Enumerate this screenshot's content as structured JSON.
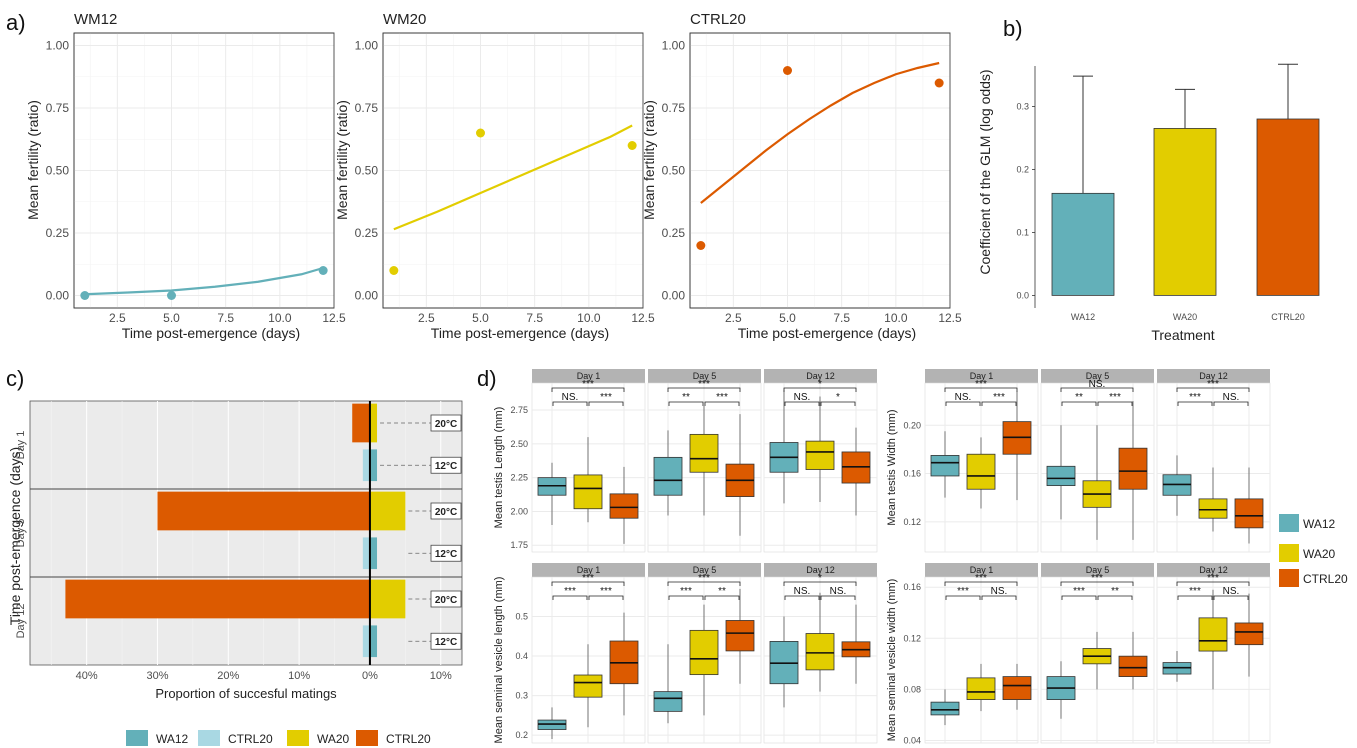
{
  "colors": {
    "wa12": "#63b0b9",
    "ctrl20_light": "#a9d8e3",
    "wa20": "#e2cd00",
    "ctrl20": "#dc5a00",
    "strip": "#b3b3b3",
    "panel_bg": "#ebebeb"
  },
  "panel_a": {
    "letter": "a)",
    "ylabel": "Mean fertility (ratio)",
    "xlabel": "Time post-emergence (days)",
    "xticks": [
      "2.5",
      "5.0",
      "7.5",
      "10.0",
      "12.5"
    ],
    "yticks": [
      "0.00",
      "0.25",
      "0.50",
      "0.75",
      "1.00"
    ]
  },
  "panel_b": {
    "letter": "b)",
    "ylabel": "Coefficient of the GLM (log odds)",
    "xlabel": "Treatment",
    "yticks": [
      "0.0",
      "0.1",
      "0.2",
      "0.3"
    ]
  },
  "panel_c": {
    "letter": "c)",
    "ylabel": "Time post-emergence (days)",
    "xlabel": "Proportion of succesful matings",
    "xticks": [
      "40%",
      "30%",
      "20%",
      "10%",
      "0%",
      "10%"
    ],
    "temp_20": "20°C",
    "temp_12": "12°C"
  },
  "panel_d": {
    "letter": "d)"
  },
  "legend_c": [
    {
      "label": "WA12",
      "color": "#63b0b9"
    },
    {
      "label": "CTRL20",
      "color": "#a9d8e3"
    },
    {
      "label": "WA20",
      "color": "#e2cd00"
    },
    {
      "label": "CTRL20",
      "color": "#dc5a00"
    }
  ],
  "legend_d": [
    {
      "label": "WA12",
      "color": "#63b0b9"
    },
    {
      "label": "WA20",
      "color": "#e2cd00"
    },
    {
      "label": "CTRL20",
      "color": "#dc5a00"
    }
  ],
  "chart_data": [
    {
      "type": "scatter",
      "panel": "a",
      "title": "WM12",
      "xlabel": "Time post-emergence (days)",
      "ylabel": "Mean fertility (ratio)",
      "xlim": [
        0.5,
        12.5
      ],
      "ylim": [
        0,
        1
      ],
      "color": "#63b0b9",
      "points": {
        "x": [
          1,
          5,
          12
        ],
        "y": [
          0.0,
          0.0,
          0.1
        ]
      },
      "fit": {
        "x": [
          1,
          3,
          5,
          7,
          9,
          11,
          12
        ],
        "y": [
          0.005,
          0.012,
          0.02,
          0.035,
          0.055,
          0.085,
          0.11
        ]
      }
    },
    {
      "type": "scatter",
      "panel": "a",
      "title": "WM20",
      "xlabel": "Time post-emergence (days)",
      "ylabel": "Mean fertility (ratio)",
      "xlim": [
        0.5,
        12.5
      ],
      "ylim": [
        0,
        1
      ],
      "color": "#e2cd00",
      "points": {
        "x": [
          1,
          5,
          12
        ],
        "y": [
          0.1,
          0.65,
          0.6
        ]
      },
      "fit": {
        "x": [
          1,
          3,
          5,
          7,
          9,
          11,
          12
        ],
        "y": [
          0.265,
          0.335,
          0.41,
          0.485,
          0.56,
          0.635,
          0.68
        ]
      }
    },
    {
      "type": "scatter",
      "panel": "a",
      "title": "CTRL20",
      "xlabel": "Time post-emergence (days)",
      "ylabel": "Mean fertility (ratio)",
      "xlim": [
        0.5,
        12.5
      ],
      "ylim": [
        0,
        1
      ],
      "color": "#dc5a00",
      "points": {
        "x": [
          1,
          5,
          12
        ],
        "y": [
          0.2,
          0.9,
          0.85
        ]
      },
      "fit": {
        "x": [
          1,
          2,
          3,
          4,
          5,
          6,
          7,
          8,
          9,
          10,
          11,
          12
        ],
        "y": [
          0.37,
          0.44,
          0.51,
          0.58,
          0.645,
          0.705,
          0.76,
          0.81,
          0.85,
          0.885,
          0.91,
          0.93
        ]
      }
    },
    {
      "type": "bar",
      "panel": "b",
      "xlabel": "Treatment",
      "ylabel": "Coefficient of the GLM (log odds)",
      "ylim": [
        0,
        0.38
      ],
      "categories": [
        "WA12",
        "WA20",
        "CTRL20"
      ],
      "values": [
        0.162,
        0.265,
        0.28
      ],
      "errors_upper": [
        0.348,
        0.327,
        0.367
      ],
      "colors": [
        "#63b0b9",
        "#e2cd00",
        "#dc5a00"
      ]
    },
    {
      "type": "bar",
      "panel": "c",
      "orientation": "horizontal",
      "xlabel": "Proportion of succesful matings",
      "ylabel": "Time post-emergence (days)",
      "xlim": [
        -0.48,
        0.13
      ],
      "groups": [
        {
          "label": "Day 1",
          "bars": [
            {
              "temp": "20°C",
              "left": -0.025,
              "right": 0.01
            },
            {
              "temp": "12°C",
              "left": -0.01,
              "right": 0.01
            }
          ]
        },
        {
          "label": "Day 5",
          "bars": [
            {
              "temp": "20°C",
              "left": -0.3,
              "right": 0.05
            },
            {
              "temp": "12°C",
              "left": -0.01,
              "right": 0.01
            }
          ]
        },
        {
          "label": "Day 12",
          "bars": [
            {
              "temp": "20°C",
              "left": -0.43,
              "right": 0.05
            },
            {
              "temp": "12°C",
              "left": -0.01,
              "right": 0.01
            }
          ]
        }
      ]
    },
    {
      "type": "box",
      "panel": "d",
      "ylabel": "Mean testis Length (mm)",
      "ylim": [
        1.7,
        2.95
      ],
      "yticks": [
        1.75,
        2.0,
        2.25,
        2.5,
        2.75
      ],
      "facets": [
        {
          "title": "Day 1",
          "sig_top": "***",
          "sig_left": "NS.",
          "sig_right": "***",
          "boxes": [
            [
              1.9,
              2.12,
              2.19,
              2.25,
              2.36
            ],
            [
              1.92,
              2.02,
              2.17,
              2.27,
              2.55
            ],
            [
              1.76,
              1.95,
              2.03,
              2.13,
              2.33
            ]
          ]
        },
        {
          "title": "Day 5",
          "sig_top": "***",
          "sig_left": "**",
          "sig_right": "***",
          "boxes": [
            [
              1.97,
              2.12,
              2.23,
              2.4,
              2.6
            ],
            [
              1.97,
              2.29,
              2.39,
              2.57,
              2.78
            ],
            [
              1.82,
              2.11,
              2.23,
              2.35,
              2.72
            ]
          ]
        },
        {
          "title": "Day 12",
          "sig_top": "*",
          "sig_left": "NS.",
          "sig_right": "*",
          "boxes": [
            [
              2.06,
              2.29,
              2.4,
              2.51,
              2.9
            ],
            [
              2.07,
              2.31,
              2.44,
              2.52,
              2.85
            ],
            [
              1.97,
              2.21,
              2.33,
              2.44,
              2.62
            ]
          ]
        }
      ]
    },
    {
      "type": "box",
      "panel": "d",
      "ylabel": "Mean testis Width (mm)",
      "ylim": [
        0.095,
        0.235
      ],
      "yticks": [
        0.12,
        0.16,
        0.2
      ],
      "facets": [
        {
          "title": "Day 1",
          "sig_top": "***",
          "sig_left": "NS.",
          "sig_right": "***",
          "boxes": [
            [
              0.14,
              0.158,
              0.169,
              0.175,
              0.195
            ],
            [
              0.131,
              0.147,
              0.158,
              0.176,
              0.19
            ],
            [
              0.138,
              0.176,
              0.19,
              0.203,
              0.228
            ]
          ]
        },
        {
          "title": "Day 5",
          "sig_top": "NS.",
          "sig_left": "**",
          "sig_right": "***",
          "boxes": [
            [
              0.122,
              0.15,
              0.156,
              0.166,
              0.2
            ],
            [
              0.105,
              0.132,
              0.143,
              0.154,
              0.2
            ],
            [
              0.105,
              0.147,
              0.162,
              0.181,
              0.22
            ]
          ]
        },
        {
          "title": "Day 12",
          "sig_top": "***",
          "sig_left": "***",
          "sig_right": "NS.",
          "boxes": [
            [
              0.125,
              0.142,
              0.151,
              0.159,
              0.175
            ],
            [
              0.112,
              0.123,
              0.13,
              0.139,
              0.165
            ],
            [
              0.102,
              0.115,
              0.125,
              0.139,
              0.165
            ]
          ]
        }
      ]
    },
    {
      "type": "box",
      "panel": "d",
      "ylabel": "Mean seminal vesicle length (mm)",
      "ylim": [
        0.18,
        0.6
      ],
      "yticks": [
        0.2,
        0.3,
        0.4,
        0.5
      ],
      "facets": [
        {
          "title": "Day 1",
          "sig_top": "***",
          "sig_left": "***",
          "sig_right": "***",
          "boxes": [
            [
              0.19,
              0.214,
              0.228,
              0.238,
              0.27
            ],
            [
              0.22,
              0.296,
              0.333,
              0.352,
              0.43
            ],
            [
              0.25,
              0.33,
              0.383,
              0.438,
              0.51
            ]
          ]
        },
        {
          "title": "Day 5",
          "sig_top": "***",
          "sig_left": "***",
          "sig_right": "**",
          "boxes": [
            [
              0.23,
              0.26,
              0.293,
              0.31,
              0.43
            ],
            [
              0.25,
              0.353,
              0.393,
              0.465,
              0.53
            ],
            [
              0.33,
              0.413,
              0.458,
              0.49,
              0.57
            ]
          ]
        },
        {
          "title": "Day 12",
          "sig_top": "*",
          "sig_left": "NS.",
          "sig_right": "NS.",
          "boxes": [
            [
              0.27,
              0.33,
              0.382,
              0.437,
              0.5
            ],
            [
              0.31,
              0.365,
              0.408,
              0.457,
              0.56
            ],
            [
              0.33,
              0.398,
              0.416,
              0.436,
              0.53
            ]
          ]
        }
      ]
    },
    {
      "type": "box",
      "panel": "d",
      "ylabel": "Mean seminal vesicle width (mm)",
      "ylim": [
        0.038,
        0.168
      ],
      "yticks": [
        0.04,
        0.08,
        0.12,
        0.16
      ],
      "facets": [
        {
          "title": "Day 1",
          "sig_top": "***",
          "sig_left": "***",
          "sig_right": "NS.",
          "boxes": [
            [
              0.052,
              0.06,
              0.064,
              0.07,
              0.08
            ],
            [
              0.063,
              0.072,
              0.078,
              0.089,
              0.1
            ],
            [
              0.064,
              0.072,
              0.083,
              0.09,
              0.1
            ]
          ]
        },
        {
          "title": "Day 5",
          "sig_top": "***",
          "sig_left": "***",
          "sig_right": "**",
          "boxes": [
            [
              0.057,
              0.072,
              0.081,
              0.09,
              0.102
            ],
            [
              0.08,
              0.1,
              0.106,
              0.112,
              0.125
            ],
            [
              0.08,
              0.09,
              0.097,
              0.106,
              0.125
            ]
          ]
        },
        {
          "title": "Day 12",
          "sig_top": "***",
          "sig_left": "***",
          "sig_right": "NS.",
          "boxes": [
            [
              0.086,
              0.092,
              0.097,
              0.101,
              0.11
            ],
            [
              0.08,
              0.11,
              0.118,
              0.136,
              0.158
            ],
            [
              0.09,
              0.115,
              0.125,
              0.132,
              0.155
            ]
          ]
        }
      ]
    }
  ]
}
